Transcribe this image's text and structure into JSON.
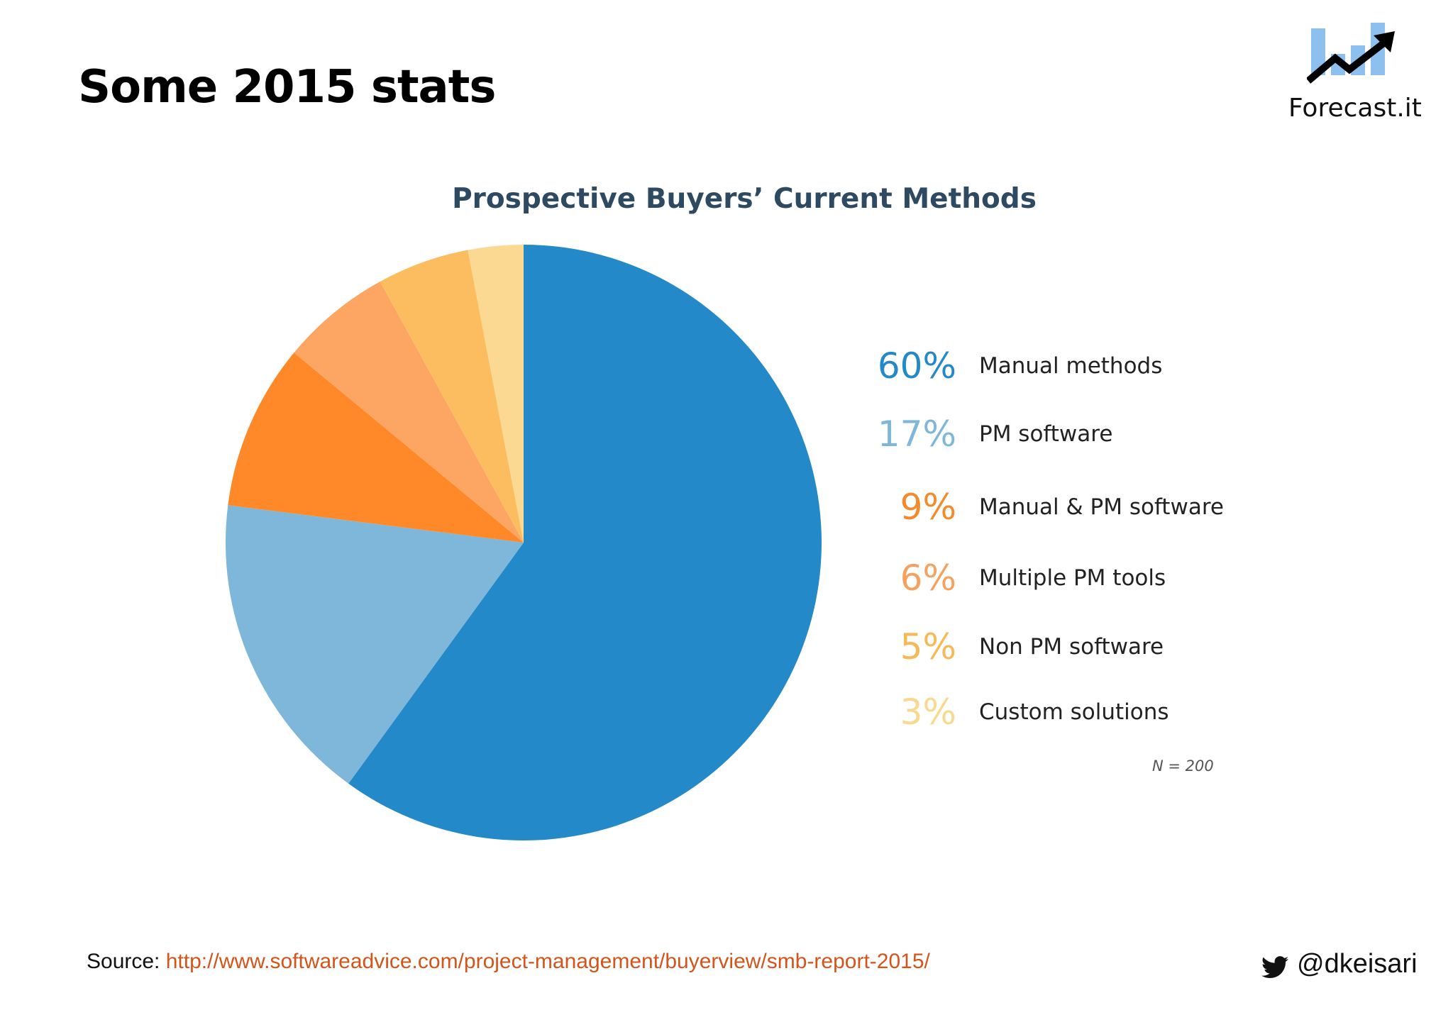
{
  "slide": {
    "title": "Some 2015 stats"
  },
  "logo": {
    "text": "Forecast.it",
    "icon": "chart-trend-arrow-icon"
  },
  "chart_data": {
    "type": "pie",
    "title": "Prospective Buyers’ Current Methods",
    "note": "N = 200",
    "slices": [
      {
        "label": "Manual methods",
        "value": 60,
        "value_label": "60%",
        "color": "#2389c8",
        "label_color": "#2389c8"
      },
      {
        "label": "PM software",
        "value": 17,
        "value_label": "17%",
        "color": "#7fb7da",
        "label_color": "#7fb7da"
      },
      {
        "label": "Manual & PM software",
        "value": 9,
        "value_label": "9%",
        "color": "#ff8828",
        "label_color": "#f58a2b"
      },
      {
        "label": "Multiple PM tools",
        "value": 6,
        "value_label": "6%",
        "color": "#fda663",
        "label_color": "#f7a15f"
      },
      {
        "label": "Non PM software",
        "value": 5,
        "value_label": "5%",
        "color": "#fbbd5f",
        "label_color": "#f6b955"
      },
      {
        "label": "Custom solutions",
        "value": 3,
        "value_label": "3%",
        "color": "#fbd992",
        "label_color": "#f9d88f"
      }
    ],
    "start_angle_deg": 0,
    "direction": "clockwise"
  },
  "footer": {
    "source_prefix": "Source: ",
    "source_url": "http://www.softwareadvice.com/project-management/buyerview/smb-report-2015/",
    "twitter_icon": "twitter-bird-icon",
    "twitter_handle": "@dkeisari"
  }
}
